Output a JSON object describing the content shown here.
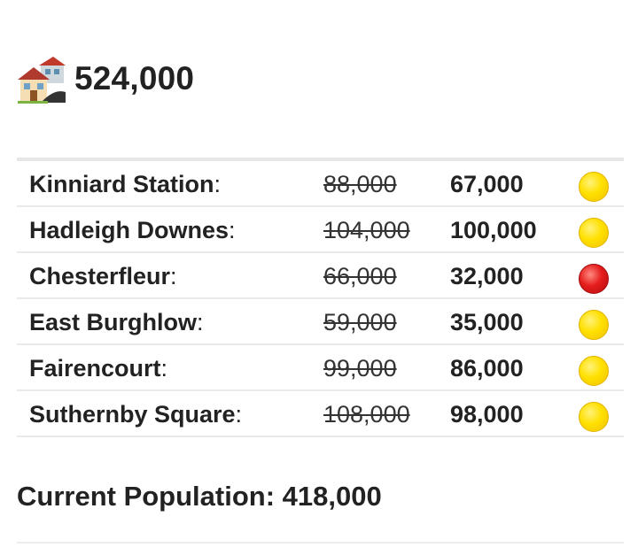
{
  "header": {
    "icon": "houses-icon",
    "total": "524,000"
  },
  "districts": [
    {
      "name": "Kinniard Station",
      "colon": ":",
      "old": "88,000",
      "new": "67,000",
      "status": "yellow",
      "status_icon": "yellow-circle-icon"
    },
    {
      "name": "Hadleigh Downes",
      "colon": ":",
      "old": "104,000",
      "new": "100,000",
      "status": "yellow",
      "status_icon": "yellow-circle-icon"
    },
    {
      "name": "Chesterfleur",
      "colon": ":",
      "old": "66,000",
      "new": "32,000",
      "status": "red",
      "status_icon": "red-circle-icon"
    },
    {
      "name": "East Burghlow",
      "colon": ":",
      "old": "59,000",
      "new": "35,000",
      "status": "yellow",
      "status_icon": "yellow-circle-icon"
    },
    {
      "name": "Fairencourt",
      "colon": ":",
      "old": "99,000",
      "new": "86,000",
      "status": "yellow",
      "status_icon": "yellow-circle-icon"
    },
    {
      "name": "Suthernby Square",
      "colon": ":",
      "old": "108,000",
      "new": "98,000",
      "status": "yellow",
      "status_icon": "yellow-circle-icon"
    }
  ],
  "current_population": "Current Population: 418,000",
  "colors": {
    "text": "#222222",
    "status_yellow": "#ffe000",
    "status_red": "#e51c1c",
    "divider": "#e9e9e9"
  }
}
